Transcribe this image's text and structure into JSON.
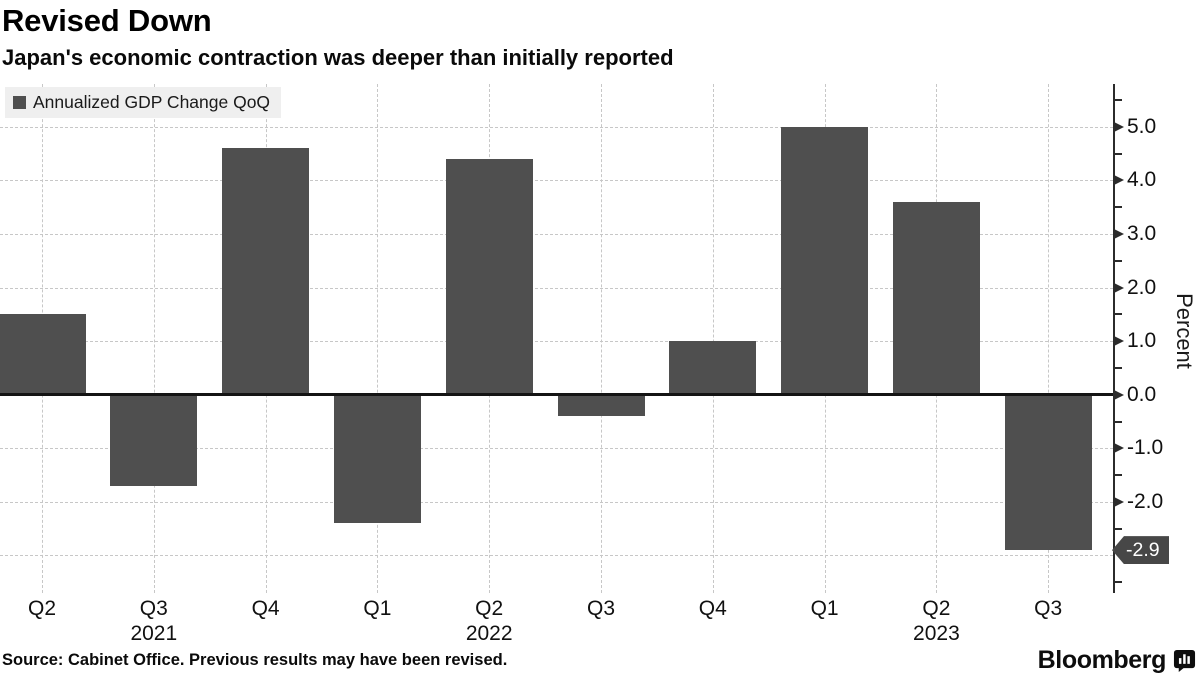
{
  "header": {
    "title": "Revised Down",
    "subtitle": "Japan's economic contraction was deeper than initially reported"
  },
  "legend": {
    "label": "Annualized GDP Change QoQ",
    "swatch_color": "#4f4f4f"
  },
  "y_axis": {
    "label": "Percent",
    "tick_labels": [
      "5.0",
      "4.0",
      "3.0",
      "2.0",
      "1.0",
      "0.0",
      "-1.0",
      "-2.0"
    ],
    "last_value_tag": "-2.9"
  },
  "x_axis": {
    "quarter_labels": [
      "Q2",
      "Q3",
      "Q4",
      "Q1",
      "Q2",
      "Q3",
      "Q4",
      "Q1",
      "Q2",
      "Q3"
    ],
    "year_labels": [
      "2021",
      "2022",
      "2023"
    ]
  },
  "footer": {
    "source": "Source: Cabinet Office. Previous results may have been revised.",
    "brand": "Bloomberg"
  },
  "chart_data": {
    "type": "bar",
    "title": "Revised Down",
    "subtitle": "Japan's economic contraction was deeper than initially reported",
    "series_name": "Annualized GDP Change QoQ",
    "categories": [
      "Q2 2021",
      "Q3 2021",
      "Q4 2021",
      "Q1 2022",
      "Q2 2022",
      "Q3 2022",
      "Q4 2022",
      "Q1 2023",
      "Q2 2023",
      "Q3 2023"
    ],
    "x_tick_labels": [
      "Q2",
      "Q3",
      "Q4",
      "Q1",
      "Q2",
      "Q3",
      "Q4",
      "Q1",
      "Q2",
      "Q3"
    ],
    "year_groups": [
      {
        "year": "2021",
        "center_index": 1
      },
      {
        "year": "2022",
        "center_index": 4
      },
      {
        "year": "2023",
        "center_index": 8
      }
    ],
    "values": [
      1.5,
      -1.7,
      4.6,
      -2.4,
      4.4,
      -0.4,
      1.0,
      5.0,
      3.6,
      -2.9
    ],
    "ylabel": "Percent",
    "ylim": [
      -3.7,
      5.8
    ],
    "ytick_labeled": [
      {
        "value": 5,
        "label": "5.0"
      },
      {
        "value": 4,
        "label": "4.0"
      },
      {
        "value": 3,
        "label": "3.0"
      },
      {
        "value": 2,
        "label": "2.0"
      },
      {
        "value": 1,
        "label": "1.0"
      },
      {
        "value": 0,
        "label": "0.0"
      },
      {
        "value": -1,
        "label": "-1.0"
      },
      {
        "value": -2,
        "label": "-2.0"
      }
    ],
    "ytick_minor": [
      5.5,
      4.5,
      3.5,
      2.5,
      1.5,
      0.5,
      -0.5,
      -1.5,
      -2.5,
      -3.5
    ],
    "ygrid_values": [
      5,
      4,
      3,
      2,
      1,
      -1,
      -2,
      -3
    ],
    "last_value_label": "-2.9",
    "bar_color": "#4f4f4f",
    "grid": true,
    "legend_position": "top-left"
  }
}
